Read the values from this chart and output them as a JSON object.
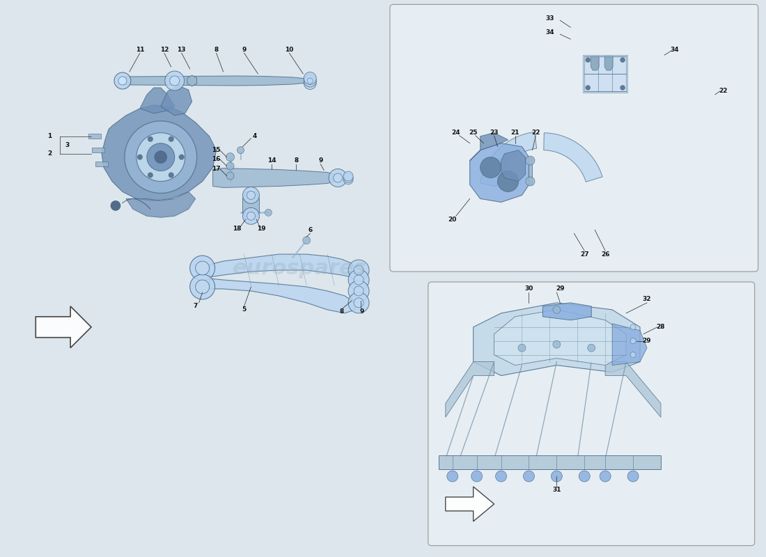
{
  "bg_color": "#dce6ec",
  "part_color_main": "#8aafe0",
  "part_color_light": "#b8d4f0",
  "part_color_mid": "#7090b8",
  "part_color_dark": "#4a6888",
  "part_color_steel": "#9ab8d0",
  "label_color": "#111111",
  "line_color": "#333333",
  "panel_bg": "#e8f0f5",
  "panel_border": "#aaaaaa",
  "watermark": "eurospares",
  "arrow_color": "#555555"
}
